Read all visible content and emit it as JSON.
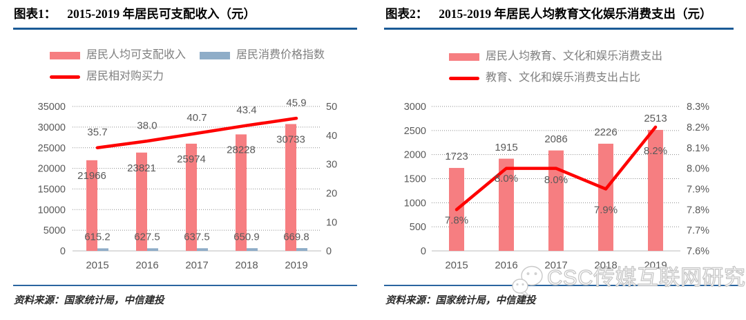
{
  "colors": {
    "bar_pink": "#f67e81",
    "bar_blue": "#8fadc8",
    "line_red": "#fe0000",
    "title_rule_blue": "#1a5a96",
    "footer_rule_blue": "#2a659f",
    "label_gray": "#595959",
    "legend_gray": "#7f7f7f"
  },
  "panels": [
    {
      "title_tag": "图表1：",
      "title_text": "2015-2019 年居民可支配收入（元）",
      "legend": [
        {
          "label": "居民人均可支配收入",
          "swatch": "bar",
          "color": "#f67e81"
        },
        {
          "label": "居民消费价格指数",
          "swatch": "bar",
          "color": "#8fadc8"
        },
        {
          "label": "居民相对购买力",
          "swatch": "line",
          "color": "#fe0000"
        }
      ],
      "source_label": "资料来源：",
      "source_text": "国家统计局，中信建投"
    },
    {
      "title_tag": "图表2：",
      "title_text": "2015-2019 年居民人均教育文化娱乐消费支出（元）",
      "legend": [
        {
          "label": "居民人均教育、文化和娱乐消费支出",
          "swatch": "bar",
          "color": "#f67e81"
        },
        {
          "label": "教育、文化和娱乐消费支出占比",
          "swatch": "line",
          "color": "#fe0000"
        }
      ],
      "source_label": "资料来源：",
      "source_text": "国家统计局，中信建投"
    }
  ],
  "watermark": {
    "text": "CSC传媒互联网研究",
    "icon": "wechat-logo"
  },
  "chart_data": [
    {
      "type": "bar",
      "subtype": "bar+line combo, dual axis",
      "title": "2015-2019 年居民可支配收入（元）",
      "categories": [
        "2015",
        "2016",
        "2017",
        "2018",
        "2019"
      ],
      "series": [
        {
          "name": "居民人均可支配收入",
          "type": "bar",
          "axis": "left",
          "color": "#f67e81",
          "values": [
            21966,
            23821,
            25974,
            28228,
            30733
          ],
          "labels": [
            "21966",
            "23821",
            "25974",
            "28228",
            "30733"
          ],
          "label_pos": "inside-top"
        },
        {
          "name": "居民消费价格指数",
          "type": "bar",
          "axis": "left",
          "color": "#8fadc8",
          "values": [
            615.2,
            627.5,
            637.5,
            650.9,
            669.8
          ],
          "labels": [
            "615.2",
            "627.5",
            "637.5",
            "650.9",
            "669.8"
          ],
          "label_pos": "above"
        },
        {
          "name": "居民相对购买力",
          "type": "line",
          "axis": "right",
          "color": "#fe0000",
          "values": [
            35.7,
            38.0,
            40.7,
            43.4,
            45.9
          ],
          "labels": [
            "35.7",
            "38.0",
            "40.7",
            "43.4",
            "45.9"
          ],
          "label_pos": "above"
        }
      ],
      "left_axis": {
        "min": 0,
        "max": 35000,
        "tick_values": [
          0,
          5000,
          10000,
          15000,
          20000,
          25000,
          30000,
          35000
        ],
        "tick_labels": [
          "0",
          "5000",
          "10000",
          "15000",
          "20000",
          "25000",
          "30000",
          "35000"
        ]
      },
      "right_axis": {
        "min": 0,
        "max": 50,
        "tick_values": [
          0,
          10,
          20,
          30,
          40,
          50
        ],
        "tick_labels": [
          "0",
          "10",
          "20",
          "30",
          "40",
          "50"
        ]
      },
      "grid": "horizontal dotted",
      "legend_position": "top"
    },
    {
      "type": "bar",
      "subtype": "bar+line combo, dual axis",
      "title": "2015-2019 年居民人均教育文化娱乐消费支出（元）",
      "categories": [
        "2015",
        "2016",
        "2017",
        "2018",
        "2019"
      ],
      "series": [
        {
          "name": "居民人均教育、文化和娱乐消费支出",
          "type": "bar",
          "axis": "left",
          "color": "#f67e81",
          "values": [
            1723,
            1915,
            2086,
            2226,
            2513
          ],
          "labels": [
            "1723",
            "1915",
            "2086",
            "2226",
            "2513"
          ],
          "label_pos": "above"
        },
        {
          "name": "教育、文化和娱乐消费支出占比",
          "type": "line",
          "axis": "right",
          "color": "#fe0000",
          "values": [
            7.8,
            8.0,
            8.0,
            7.9,
            8.2
          ],
          "labels": [
            "7.8%",
            "8.0%",
            "8.0%",
            "7.9%",
            "8.2%"
          ],
          "label_pos": "below",
          "label_dy": [
            15,
            14,
            16,
            30,
            34
          ]
        }
      ],
      "left_axis": {
        "min": 0,
        "max": 3000,
        "tick_values": [
          0,
          500,
          1000,
          1500,
          2000,
          2500,
          3000
        ],
        "tick_labels": [
          "0",
          "500",
          "1000",
          "1500",
          "2000",
          "2500",
          "3000"
        ]
      },
      "right_axis": {
        "min": 7.6,
        "max": 8.3,
        "tick_values": [
          7.6,
          7.7,
          7.8,
          7.9,
          8.0,
          8.1,
          8.2,
          8.3
        ],
        "tick_labels": [
          "7.6%",
          "7.7%",
          "7.8%",
          "7.9%",
          "8.0%",
          "8.1%",
          "8.2%",
          "8.3%"
        ]
      },
      "grid": "horizontal dotted",
      "legend_position": "top"
    }
  ]
}
